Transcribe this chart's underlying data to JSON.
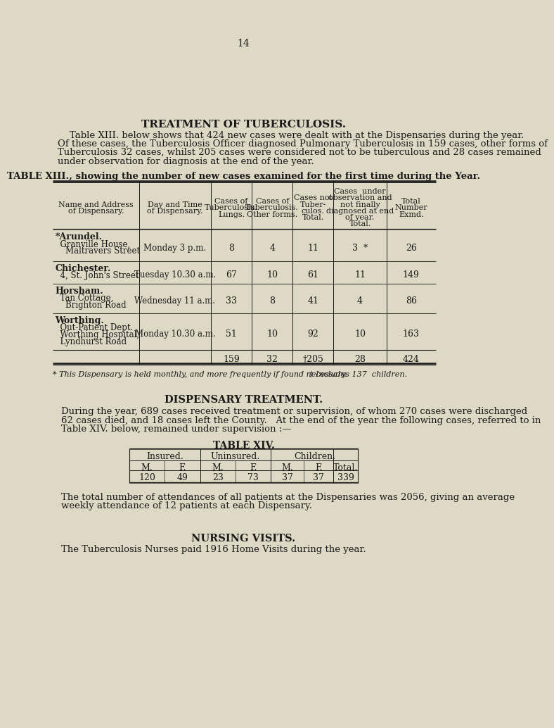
{
  "bg_color": "#ddd9c4",
  "text_color": "#1a1a1a",
  "page_number": "14",
  "main_title": "TREATMENT OF TUBERCULOSIS.",
  "intro_para1": "    Table XIII. below shows that 424 new cases were dealt with at the Dispensaries during the year.",
  "intro_para2": "Of these cases, the Tuberculosis Officer diagnosed Pulmonary Tuberculosis in 159 cases, other forms of",
  "intro_para3": "Tuberculosis 32 cases, whilst 205 cases were considered not to be tuberculous and 28 cases remained",
  "intro_para4": "under observation for diagnosis at the end of the year.",
  "table13_title": "TABLE XIII., showing the number of new cases examined for the first time during the Year.",
  "col_headers": [
    [
      "Name and Address",
      "of Dispensary."
    ],
    [
      "Day and Time",
      "of Dispensary."
    ],
    [
      "Cases of",
      "Tuberculosis.",
      "Lungs."
    ],
    [
      "Cases of",
      "Tuberculosis.",
      "Other forms."
    ],
    [
      "Cases not",
      "Tuber-",
      "culos.",
      "Total."
    ],
    [
      "Cases  under",
      "observation and",
      "not finally",
      "diagnosed at end",
      "of year.",
      "Total."
    ],
    [
      "Total",
      "Number",
      "Exmd."
    ]
  ],
  "rows": [
    {
      "name_bold": "*Arundel.",
      "name_rest": [
        "  Granville House,",
        "    Maltravers Street"
      ],
      "day": "Monday 3 p.m.",
      "lungs": "8",
      "other": "4",
      "not_tb": "11",
      "obs": "3  *",
      "total": "26"
    },
    {
      "name_bold": "Chichester.",
      "name_rest": [
        "  4, St. John's Street"
      ],
      "day": "Tuesday 10.30 a.m.",
      "lungs": "67",
      "other": "10",
      "not_tb": "61",
      "obs": "11",
      "total": "149"
    },
    {
      "name_bold": "Horsham.",
      "name_rest": [
        "  Tan Cottage,",
        "    Brighton Road"
      ],
      "day": "Wednesday 11 a.m.",
      "lungs": "33",
      "other": "8",
      "not_tb": "41",
      "obs": "4",
      "total": "86"
    },
    {
      "name_bold": "Worthing.",
      "name_rest": [
        "  Out-Patient Dept.",
        "  Worthing Hospital,",
        "  Lyndhurst Road"
      ],
      "day": "Monday 10.30 a.m.",
      "lungs": "51",
      "other": "10",
      "not_tb": "92",
      "obs": "10",
      "total": "163"
    }
  ],
  "totals": [
    "",
    "",
    "159",
    "32",
    "†205",
    "28",
    "424"
  ],
  "footnote1": "* This Dispensary is held monthly, and more frequently if found necessary.",
  "footnote2": "† Includes 137  children.",
  "disp_title": "DISPENSARY TREATMENT.",
  "disp_text": [
    "During the year, 689 cases received treatment or supervision, of whom 270 cases were discharged",
    "62 cases died, and 18 cases left the County.   At the end of the year the following cases, referred to in",
    "Table XIV. below, remained under supervision :—"
  ],
  "table14_title": "TABLE XIV.",
  "t14_hdr": [
    "Insured.",
    "Uninsured.",
    "Children."
  ],
  "t14_sub": [
    "M.",
    "F.",
    "M.",
    "F.",
    "M.",
    "F.",
    "Total."
  ],
  "t14_vals": [
    "120",
    "49",
    "23",
    "73",
    "37",
    "37",
    "339"
  ],
  "attend_text": [
    "The total number of attendances of all patients at the Dispensaries was 2056, giving an average",
    "weekly attendance of 12 patients at each Dispensary."
  ],
  "nursing_title": "NURSING VISITS.",
  "nursing_text": "The Tuberculosis Nurses paid 1916 Home Visits during the year."
}
